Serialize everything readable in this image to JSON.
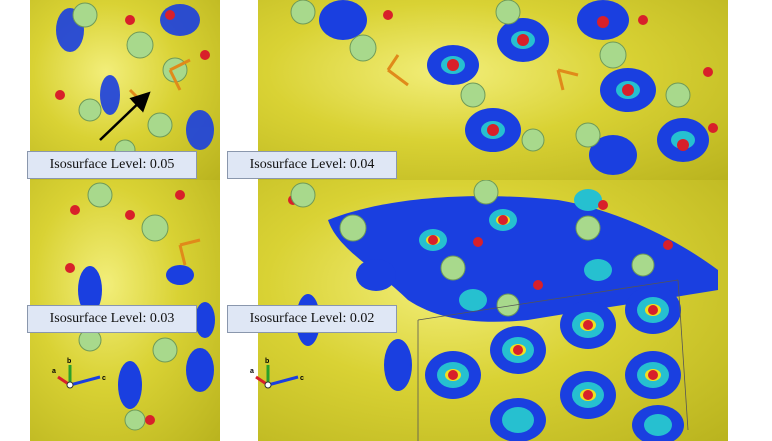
{
  "panels": [
    {
      "label": "Isosurface Level: 0.05"
    },
    {
      "label": "Isosurface Level: 0.04"
    },
    {
      "label": "Isosurface Level: 0.03"
    },
    {
      "label": "Isosurface Level: 0.02"
    }
  ],
  "axes": {
    "a": "a",
    "b": "b",
    "c": "c"
  },
  "colors": {
    "isosurface_yellow": "#d9d234",
    "isosurface_blue": "#1a3fe0",
    "atom_green": "#a8d98c",
    "atom_red": "#d8202a",
    "bond_orange": "#e08a1a"
  },
  "icons": [
    "arrow-annotation-icon",
    "axis-orientation-icon"
  ]
}
